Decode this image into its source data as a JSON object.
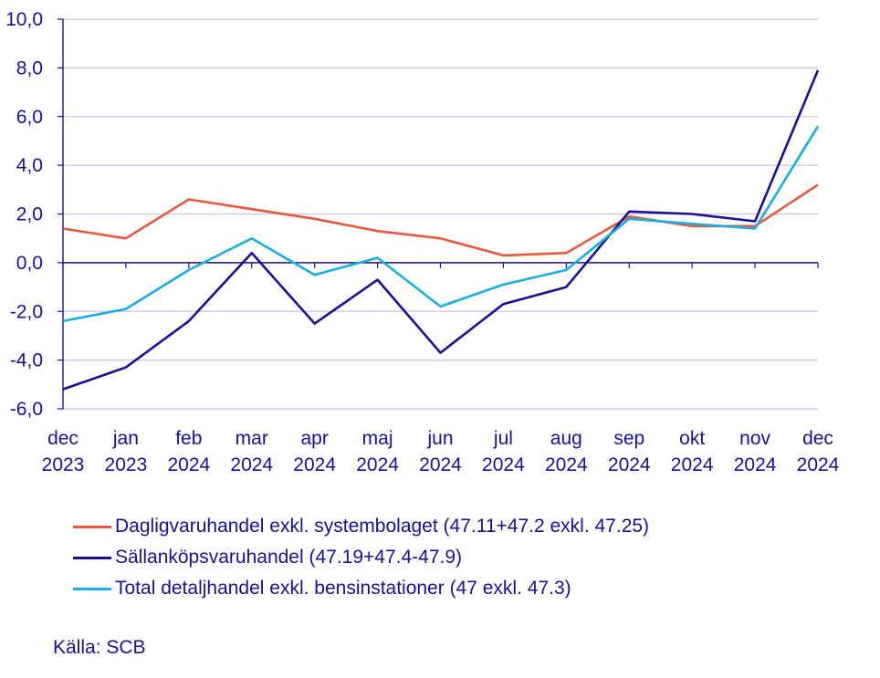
{
  "chart_data": {
    "type": "line",
    "title": "",
    "xlabel": "",
    "ylabel": "",
    "ylim": [
      -6,
      10
    ],
    "yticks": [
      "10,0",
      "8,0",
      "6,0",
      "4,0",
      "2,0",
      "0,0",
      "-2,0",
      "-4,0",
      "-6,0"
    ],
    "ytick_values": [
      10,
      8,
      6,
      4,
      2,
      0,
      -2,
      -4,
      -6
    ],
    "categories": [
      [
        "dec",
        "2023"
      ],
      [
        "jan",
        "2023"
      ],
      [
        "feb",
        "2024"
      ],
      [
        "mar",
        "2024"
      ],
      [
        "apr",
        "2024"
      ],
      [
        "maj",
        "2024"
      ],
      [
        "jun",
        "2024"
      ],
      [
        "jul",
        "2024"
      ],
      [
        "aug",
        "2024"
      ],
      [
        "sep",
        "2024"
      ],
      [
        "okt",
        "2024"
      ],
      [
        "nov",
        "2024"
      ],
      [
        "dec",
        "2024"
      ]
    ],
    "grid": true,
    "legend_position": "bottom",
    "series": [
      {
        "name": "Dagligvaruhandel exkl. systembolaget (47.11+47.2 exkl. 47.25)",
        "color": "#e8593c",
        "values": [
          1.4,
          1.0,
          2.6,
          2.2,
          1.8,
          1.3,
          1.0,
          0.3,
          0.4,
          1.9,
          1.5,
          1.5,
          3.2
        ]
      },
      {
        "name": "Sällanköpsvaruhandel (47.19+47.4-47.9)",
        "color": "#1a0f96",
        "values": [
          -5.2,
          -4.3,
          -2.4,
          0.4,
          -2.5,
          -0.7,
          -3.7,
          -1.7,
          -1.0,
          2.1,
          2.0,
          1.7,
          7.9
        ]
      },
      {
        "name": "Total detaljhandel exkl. bensinstationer (47 exkl. 47.3)",
        "color": "#16aee3",
        "values": [
          -2.4,
          -1.9,
          -0.3,
          1.0,
          -0.5,
          0.2,
          -1.8,
          -0.9,
          -0.3,
          1.8,
          1.6,
          1.4,
          5.6
        ]
      }
    ]
  },
  "source": "Källa: SCB",
  "colors": {
    "grid": "#c9c4ea",
    "axis": "#1a0f96",
    "text": "#1a0f96"
  }
}
